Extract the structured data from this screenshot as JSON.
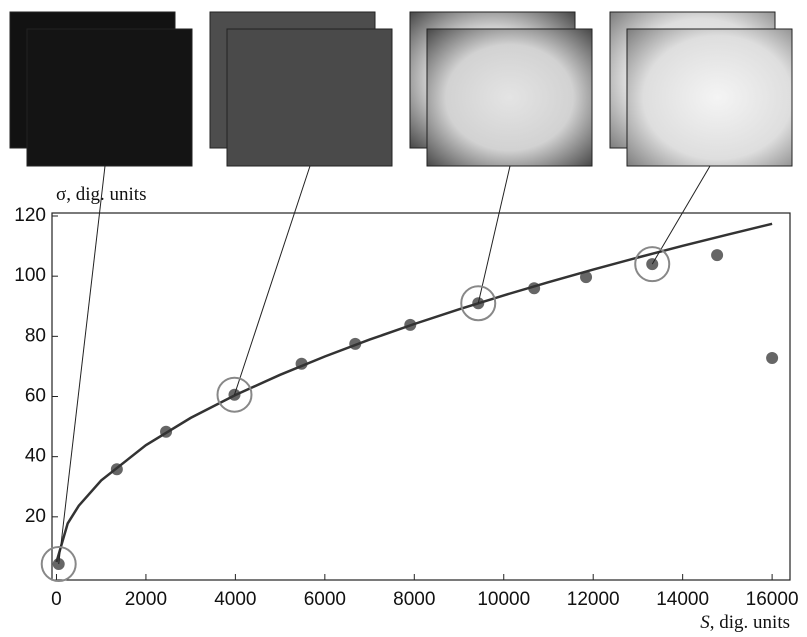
{
  "chart_data": {
    "type": "scatter",
    "xlabel": "S, dig. units",
    "ylabel": "σ, dig. units",
    "xlim": [
      -100,
      16400
    ],
    "ylim": [
      -1,
      121
    ],
    "xticks": [
      0,
      2000,
      4000,
      6000,
      8000,
      10000,
      12000,
      14000,
      16000
    ],
    "yticks": [
      20,
      40,
      60,
      80,
      100,
      120
    ],
    "series": [
      {
        "type": "scatter",
        "color": "#666666",
        "x": [
          50,
          1350,
          2450,
          3980,
          5480,
          6680,
          7910,
          9430,
          10680,
          11840,
          13320,
          14770,
          16000
        ],
        "values": [
          4.3,
          35.8,
          48.3,
          60.6,
          70.9,
          77.5,
          83.8,
          91,
          96,
          99.7,
          104,
          107,
          72.8
        ]
      },
      {
        "type": "line",
        "color": "#333333",
        "x": [
          0,
          250,
          500,
          1000,
          2000,
          3000,
          4000,
          5000,
          6000,
          7000,
          8000,
          9000,
          10000,
          11000,
          12000,
          13000,
          14000,
          15000,
          16000
        ],
        "values": [
          5,
          17.8,
          23.7,
          32.1,
          43.8,
          52.9,
          60.5,
          67.2,
          73.3,
          78.9,
          84.1,
          89,
          93.6,
          98,
          102.2,
          106.2,
          110.1,
          113.8,
          117.4
        ]
      }
    ]
  }
}
